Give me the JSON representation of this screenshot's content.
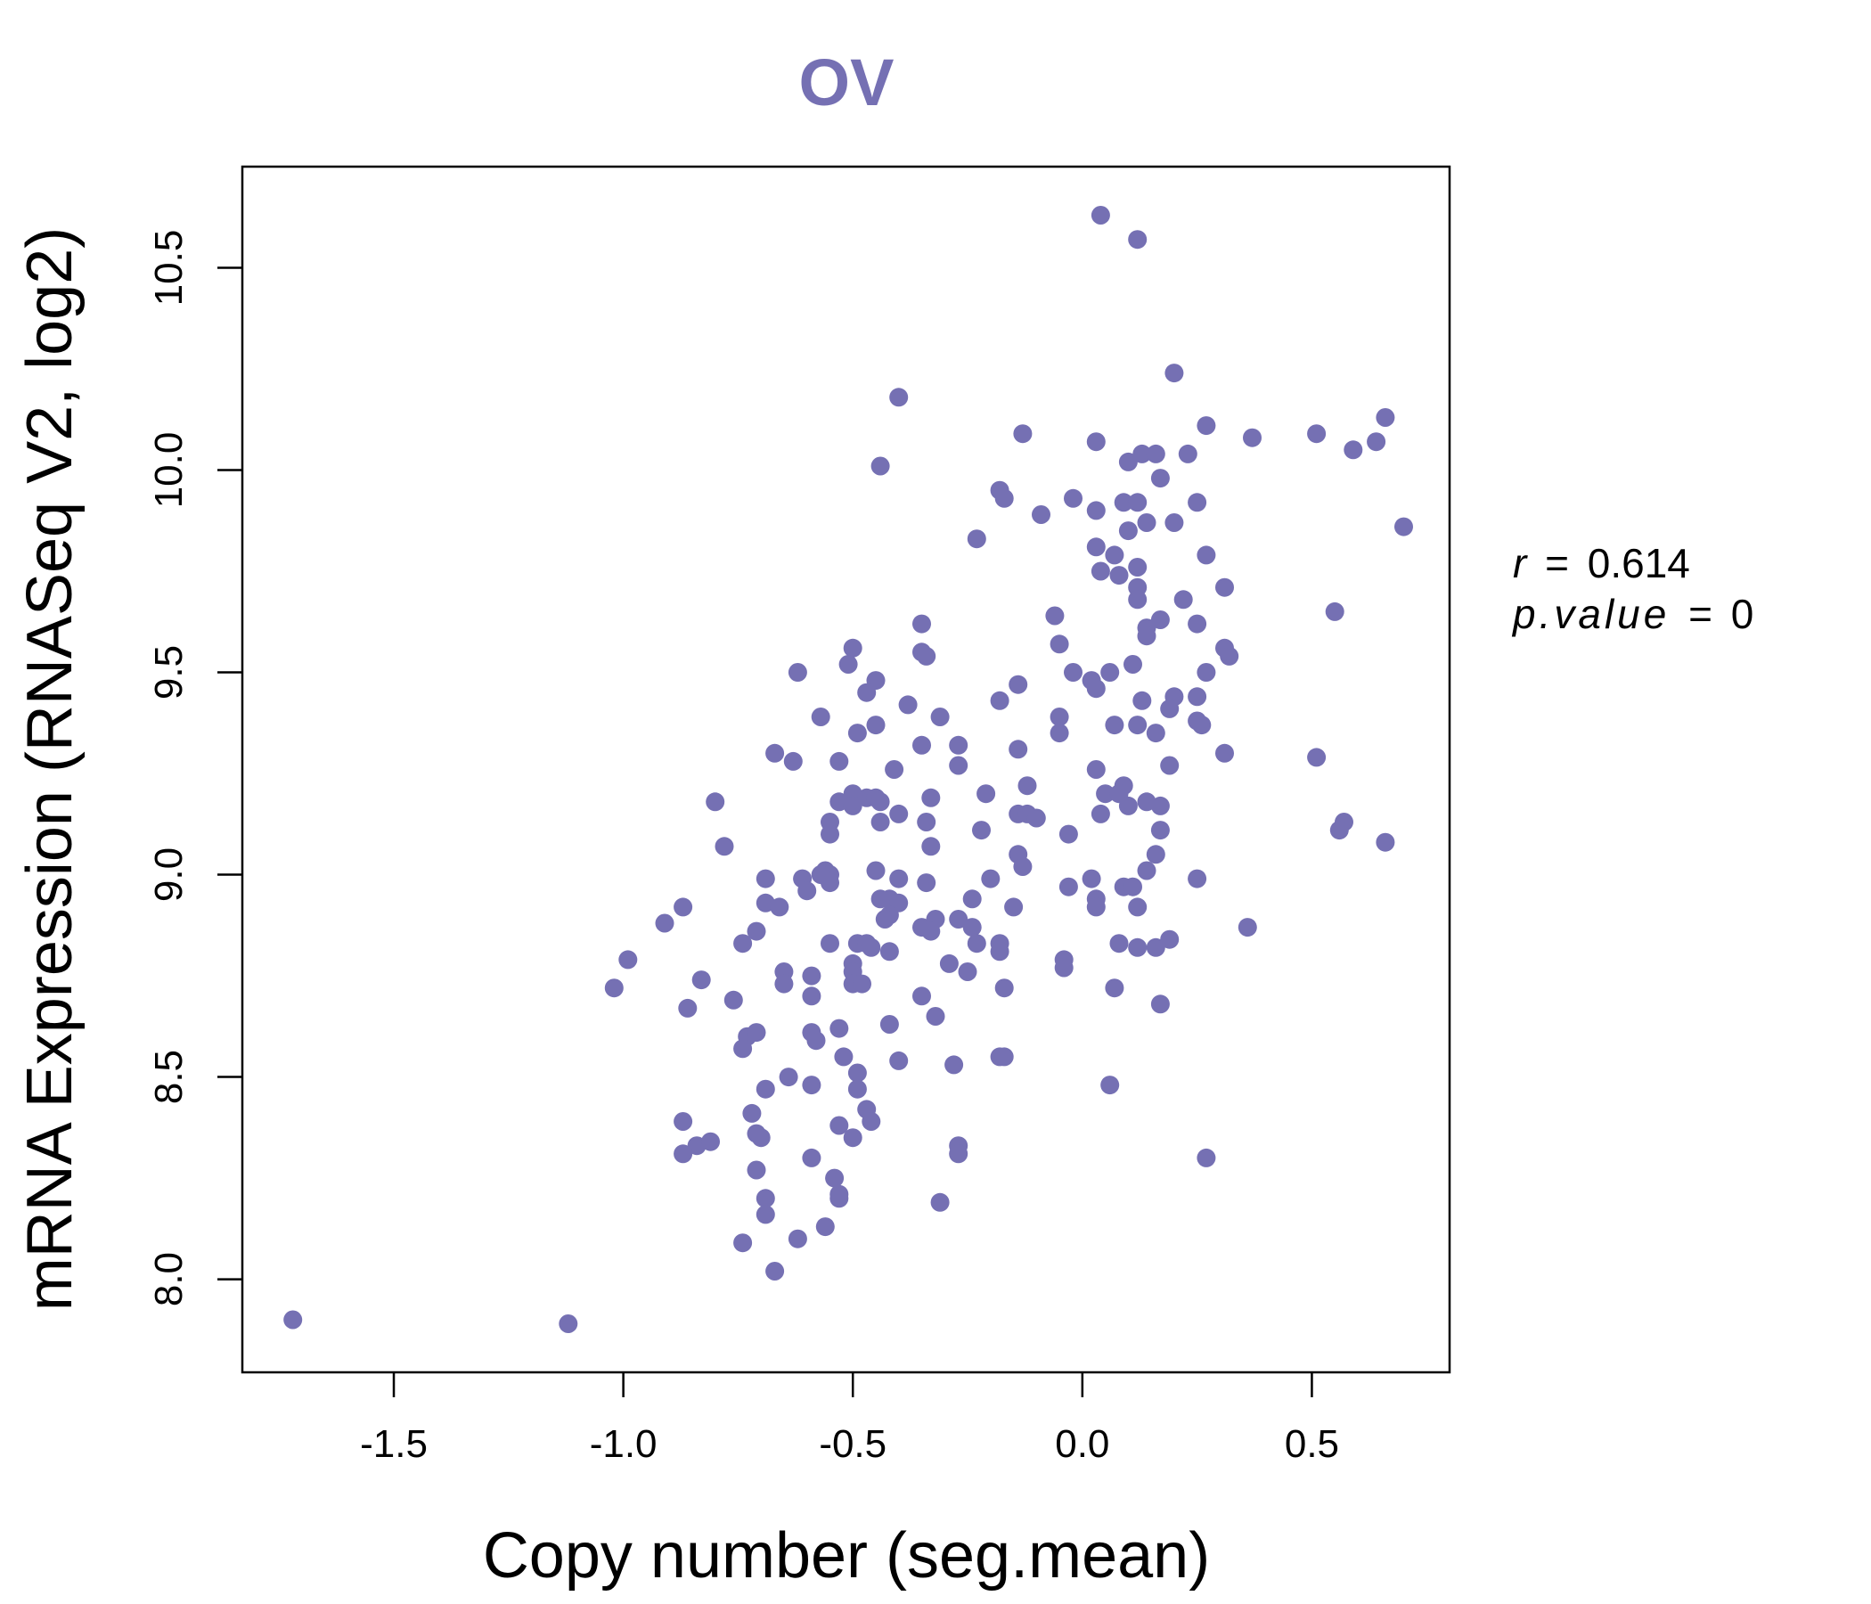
{
  "colors": {
    "accent": "#7570b3",
    "axis": "#000000",
    "background": "#ffffff"
  },
  "chart_data": {
    "type": "scatter",
    "title": "OV",
    "xlabel": "Copy number (seg.mean)",
    "ylabel": "mRNA Expression (RNASeq V2, log2)",
    "xlim": [
      -1.83,
      0.8
    ],
    "ylim": [
      7.77,
      10.75
    ],
    "xticks": [
      {
        "value": -1.5,
        "label": "-1.5"
      },
      {
        "value": -1.0,
        "label": "-1.0"
      },
      {
        "value": -0.5,
        "label": "-0.5"
      },
      {
        "value": 0.0,
        "label": "0.0"
      },
      {
        "value": 0.5,
        "label": "0.5"
      }
    ],
    "yticks": [
      {
        "value": 8.0,
        "label": "8.0"
      },
      {
        "value": 8.5,
        "label": "8.5"
      },
      {
        "value": 9.0,
        "label": "9.0"
      },
      {
        "value": 9.5,
        "label": "9.5"
      },
      {
        "value": 10.0,
        "label": "10.0"
      },
      {
        "value": 10.5,
        "label": "10.5"
      }
    ],
    "stats": {
      "r_label": "r",
      "eq": "=",
      "r_value": "0.614",
      "p_label": "p.value",
      "p_value": "0"
    },
    "points": [
      [
        -1.72,
        7.9
      ],
      [
        -1.12,
        7.89
      ],
      [
        0.04,
        10.63
      ],
      [
        0.12,
        10.57
      ],
      [
        0.2,
        10.24
      ],
      [
        -0.4,
        10.18
      ],
      [
        -0.44,
        10.01
      ],
      [
        -0.13,
        10.09
      ],
      [
        0.03,
        10.07
      ],
      [
        0.1,
        10.02
      ],
      [
        0.13,
        10.04
      ],
      [
        0.16,
        10.04
      ],
      [
        0.23,
        10.04
      ],
      [
        0.27,
        10.11
      ],
      [
        0.37,
        10.08
      ],
      [
        0.51,
        10.09
      ],
      [
        0.59,
        10.05
      ],
      [
        0.64,
        10.07
      ],
      [
        0.66,
        10.13
      ],
      [
        0.7,
        9.86
      ],
      [
        -0.18,
        9.95
      ],
      [
        -0.17,
        9.93
      ],
      [
        -0.02,
        9.93
      ],
      [
        0.03,
        9.9
      ],
      [
        0.09,
        9.92
      ],
      [
        0.12,
        9.92
      ],
      [
        0.17,
        9.98
      ],
      [
        0.25,
        9.92
      ],
      [
        -0.23,
        9.83
      ],
      [
        -0.09,
        9.89
      ],
      [
        0.14,
        9.87
      ],
      [
        0.2,
        9.87
      ],
      [
        0.1,
        9.85
      ],
      [
        0.03,
        9.81
      ],
      [
        0.07,
        9.79
      ],
      [
        0.12,
        9.76
      ],
      [
        0.27,
        9.79
      ],
      [
        0.04,
        9.75
      ],
      [
        0.08,
        9.74
      ],
      [
        0.12,
        9.71
      ],
      [
        0.31,
        9.71
      ],
      [
        0.12,
        9.68
      ],
      [
        0.22,
        9.68
      ],
      [
        -0.06,
        9.64
      ],
      [
        0.17,
        9.63
      ],
      [
        0.25,
        9.62
      ],
      [
        0.55,
        9.65
      ],
      [
        -0.35,
        9.62
      ],
      [
        0.14,
        9.61
      ],
      [
        0.14,
        9.59
      ],
      [
        -0.05,
        9.57
      ],
      [
        -0.5,
        9.56
      ],
      [
        -0.35,
        9.55
      ],
      [
        -0.34,
        9.54
      ],
      [
        0.31,
        9.56
      ],
      [
        0.32,
        9.54
      ],
      [
        -0.51,
        9.52
      ],
      [
        -0.62,
        9.5
      ],
      [
        -0.02,
        9.5
      ],
      [
        0.06,
        9.5
      ],
      [
        0.11,
        9.52
      ],
      [
        0.27,
        9.5
      ],
      [
        0.02,
        9.48
      ],
      [
        0.03,
        9.46
      ],
      [
        -0.45,
        9.48
      ],
      [
        -0.47,
        9.45
      ],
      [
        -0.14,
        9.47
      ],
      [
        0.13,
        9.43
      ],
      [
        0.2,
        9.44
      ],
      [
        0.25,
        9.44
      ],
      [
        -0.38,
        9.42
      ],
      [
        -0.18,
        9.43
      ],
      [
        0.19,
        9.41
      ],
      [
        -0.57,
        9.39
      ],
      [
        -0.31,
        9.39
      ],
      [
        -0.05,
        9.39
      ],
      [
        -0.45,
        9.37
      ],
      [
        -0.49,
        9.35
      ],
      [
        0.07,
        9.37
      ],
      [
        0.12,
        9.37
      ],
      [
        0.16,
        9.35
      ],
      [
        0.25,
        9.38
      ],
      [
        0.26,
        9.37
      ],
      [
        -0.05,
        9.35
      ],
      [
        -0.35,
        9.32
      ],
      [
        -0.27,
        9.32
      ],
      [
        -0.14,
        9.31
      ],
      [
        -0.67,
        9.3
      ],
      [
        -0.63,
        9.28
      ],
      [
        -0.53,
        9.28
      ],
      [
        -0.27,
        9.27
      ],
      [
        0.31,
        9.3
      ],
      [
        0.51,
        9.29
      ],
      [
        -0.41,
        9.26
      ],
      [
        0.03,
        9.26
      ],
      [
        0.19,
        9.27
      ],
      [
        -0.12,
        9.22
      ],
      [
        0.09,
        9.22
      ],
      [
        -0.8,
        9.18
      ],
      [
        -0.53,
        9.18
      ],
      [
        -0.5,
        9.2
      ],
      [
        -0.47,
        9.19
      ],
      [
        -0.45,
        9.19
      ],
      [
        -0.44,
        9.18
      ],
      [
        -0.33,
        9.19
      ],
      [
        -0.21,
        9.2
      ],
      [
        0.05,
        9.2
      ],
      [
        0.08,
        9.2
      ],
      [
        0.14,
        9.18
      ],
      [
        0.17,
        9.17
      ],
      [
        -0.5,
        9.17
      ],
      [
        -0.4,
        9.15
      ],
      [
        -0.14,
        9.15
      ],
      [
        -0.12,
        9.15
      ],
      [
        -0.1,
        9.14
      ],
      [
        0.04,
        9.15
      ],
      [
        0.1,
        9.17
      ],
      [
        -0.55,
        9.13
      ],
      [
        -0.44,
        9.13
      ],
      [
        -0.34,
        9.13
      ],
      [
        -0.22,
        9.11
      ],
      [
        0.17,
        9.11
      ],
      [
        0.57,
        9.13
      ],
      [
        0.56,
        9.11
      ],
      [
        -0.55,
        9.1
      ],
      [
        -0.03,
        9.1
      ],
      [
        -0.78,
        9.07
      ],
      [
        -0.33,
        9.07
      ],
      [
        0.66,
        9.08
      ],
      [
        -0.14,
        9.05
      ],
      [
        0.16,
        9.05
      ],
      [
        -0.56,
        9.01
      ],
      [
        -0.55,
        9.0
      ],
      [
        -0.45,
        9.01
      ],
      [
        -0.4,
        8.99
      ],
      [
        -0.13,
        9.02
      ],
      [
        0.14,
        9.01
      ],
      [
        -0.69,
        8.99
      ],
      [
        -0.61,
        8.99
      ],
      [
        -0.57,
        9.0
      ],
      [
        -0.55,
        8.98
      ],
      [
        -0.34,
        8.98
      ],
      [
        -0.2,
        8.99
      ],
      [
        0.02,
        8.99
      ],
      [
        -0.03,
        8.97
      ],
      [
        0.09,
        8.97
      ],
      [
        0.11,
        8.97
      ],
      [
        0.25,
        8.99
      ],
      [
        -0.6,
        8.96
      ],
      [
        -0.44,
        8.94
      ],
      [
        -0.42,
        8.94
      ],
      [
        -0.4,
        8.93
      ],
      [
        -0.24,
        8.94
      ],
      [
        -0.15,
        8.92
      ],
      [
        0.03,
        8.94
      ],
      [
        0.03,
        8.92
      ],
      [
        0.12,
        8.92
      ],
      [
        -0.69,
        8.93
      ],
      [
        -0.66,
        8.92
      ],
      [
        -0.87,
        8.92
      ],
      [
        -0.42,
        8.9
      ],
      [
        -0.43,
        8.89
      ],
      [
        -0.32,
        8.89
      ],
      [
        -0.27,
        8.89
      ],
      [
        -0.24,
        8.87
      ],
      [
        -0.35,
        8.87
      ],
      [
        -0.33,
        8.86
      ],
      [
        -0.91,
        8.88
      ],
      [
        -0.71,
        8.86
      ],
      [
        -0.74,
        8.83
      ],
      [
        -0.55,
        8.83
      ],
      [
        -0.49,
        8.83
      ],
      [
        -0.47,
        8.83
      ],
      [
        -0.46,
        8.82
      ],
      [
        -0.42,
        8.81
      ],
      [
        -0.23,
        8.83
      ],
      [
        -0.18,
        8.83
      ],
      [
        -0.18,
        8.81
      ],
      [
        0.08,
        8.83
      ],
      [
        0.12,
        8.82
      ],
      [
        0.16,
        8.82
      ],
      [
        0.19,
        8.84
      ],
      [
        0.36,
        8.87
      ],
      [
        -0.99,
        8.79
      ],
      [
        -0.5,
        8.78
      ],
      [
        -0.29,
        8.78
      ],
      [
        -0.04,
        8.79
      ],
      [
        -0.04,
        8.77
      ],
      [
        -0.65,
        8.76
      ],
      [
        -0.59,
        8.75
      ],
      [
        -0.5,
        8.76
      ],
      [
        -0.25,
        8.76
      ],
      [
        -0.83,
        8.74
      ],
      [
        -0.65,
        8.73
      ],
      [
        -0.5,
        8.73
      ],
      [
        -0.48,
        8.73
      ],
      [
        -1.02,
        8.72
      ],
      [
        -0.17,
        8.72
      ],
      [
        0.07,
        8.72
      ],
      [
        -0.76,
        8.69
      ],
      [
        -0.59,
        8.7
      ],
      [
        -0.35,
        8.7
      ],
      [
        -0.86,
        8.67
      ],
      [
        0.17,
        8.68
      ],
      [
        -0.32,
        8.65
      ],
      [
        -0.42,
        8.63
      ],
      [
        -0.73,
        8.6
      ],
      [
        -0.71,
        8.61
      ],
      [
        -0.59,
        8.61
      ],
      [
        -0.58,
        8.59
      ],
      [
        -0.53,
        8.62
      ],
      [
        -0.74,
        8.57
      ],
      [
        -0.52,
        8.55
      ],
      [
        -0.4,
        8.54
      ],
      [
        -0.18,
        8.55
      ],
      [
        -0.17,
        8.55
      ],
      [
        -0.28,
        8.53
      ],
      [
        -0.64,
        8.5
      ],
      [
        -0.59,
        8.48
      ],
      [
        -0.49,
        8.51
      ],
      [
        -0.49,
        8.47
      ],
      [
        0.06,
        8.48
      ],
      [
        -0.69,
        8.47
      ],
      [
        -0.72,
        8.41
      ],
      [
        -0.47,
        8.42
      ],
      [
        -0.46,
        8.39
      ],
      [
        -0.87,
        8.39
      ],
      [
        -0.53,
        8.38
      ],
      [
        -0.5,
        8.35
      ],
      [
        -0.71,
        8.36
      ],
      [
        -0.7,
        8.35
      ],
      [
        -0.84,
        8.33
      ],
      [
        -0.81,
        8.34
      ],
      [
        -0.87,
        8.31
      ],
      [
        -0.27,
        8.33
      ],
      [
        -0.27,
        8.31
      ],
      [
        0.27,
        8.3
      ],
      [
        -0.59,
        8.3
      ],
      [
        -0.71,
        8.27
      ],
      [
        -0.54,
        8.25
      ],
      [
        -0.53,
        8.21
      ],
      [
        -0.53,
        8.2
      ],
      [
        -0.69,
        8.2
      ],
      [
        -0.69,
        8.16
      ],
      [
        -0.31,
        8.19
      ],
      [
        -0.56,
        8.13
      ],
      [
        -0.62,
        8.1
      ],
      [
        -0.74,
        8.09
      ],
      [
        -0.67,
        8.02
      ]
    ]
  }
}
